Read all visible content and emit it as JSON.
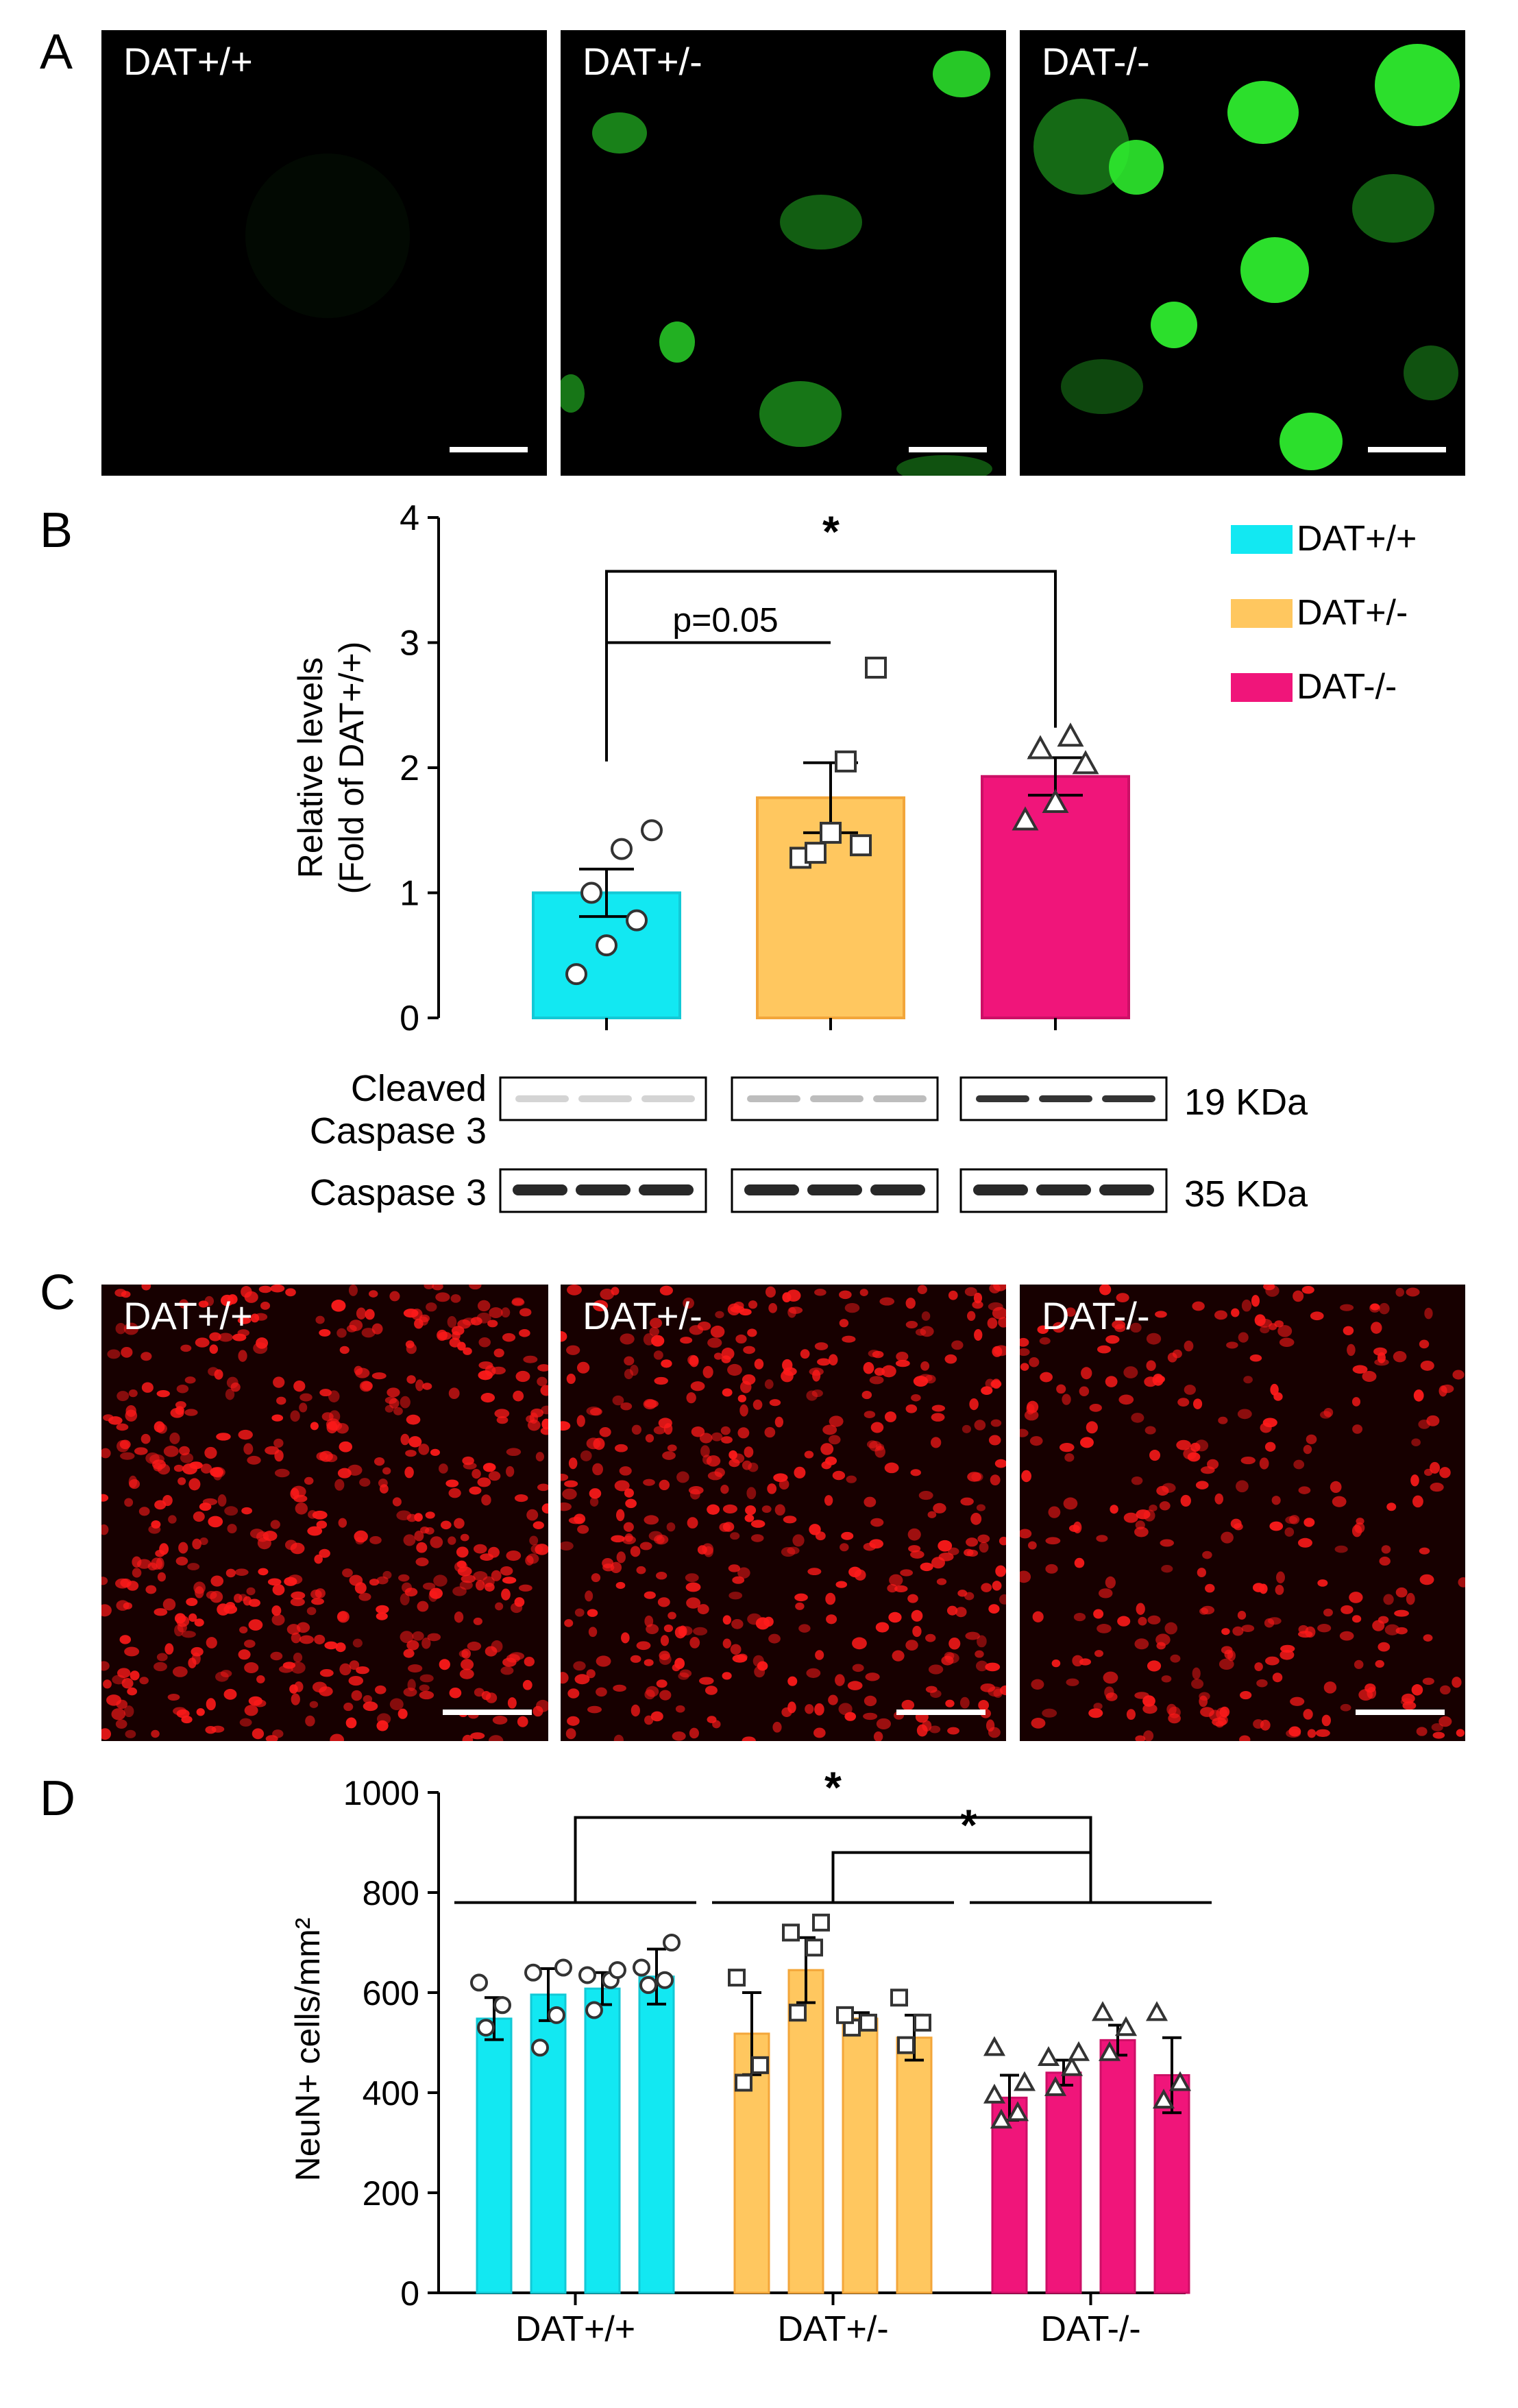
{
  "colors": {
    "wt": "#12e8f2",
    "het": "#ffc75f",
    "ko": "#f0157a",
    "wt_edge": "#12c9d6",
    "het_edge": "#f3a63a",
    "ko_edge": "#cc0f66",
    "green_signal": "#2eeb2e",
    "red_signal": "#ff1a1a"
  },
  "panel_labels": {
    "a": "A",
    "b": "B",
    "c": "C",
    "d": "D"
  },
  "panel_a": {
    "images": [
      {
        "label": "DAT+/+"
      },
      {
        "label": "DAT+/-"
      },
      {
        "label": "DAT-/-"
      }
    ]
  },
  "panel_c": {
    "images": [
      {
        "label": "DAT+/+"
      },
      {
        "label": "DAT+/-"
      },
      {
        "label": "DAT-/-"
      }
    ]
  },
  "legend": [
    {
      "label": "DAT+/+",
      "color_key": "wt"
    },
    {
      "label": "DAT+/-",
      "color_key": "het"
    },
    {
      "label": "DAT-/-",
      "color_key": "ko"
    }
  ],
  "western": {
    "rows": [
      {
        "label_lines": [
          "Cleaved",
          "Caspase 3"
        ],
        "size": "19 KDa"
      },
      {
        "label_lines": [
          "Caspase 3"
        ],
        "size": "35 KDa"
      }
    ]
  },
  "chart_data": [
    {
      "type": "bar",
      "ylabel_lines": [
        "Relative levels",
        "(Fold of DAT+/+)"
      ],
      "ylim": [
        0,
        4
      ],
      "yticks": [
        0,
        1,
        2,
        3,
        4
      ],
      "categories": [
        "DAT+/+",
        "DAT+/-",
        "DAT-/-"
      ],
      "values": [
        1.0,
        1.76,
        1.93
      ],
      "sem": [
        0.19,
        0.28,
        0.15
      ],
      "markers": [
        "circle",
        "square",
        "triangle"
      ],
      "points": [
        [
          0.35,
          0.58,
          0.78,
          1.0,
          1.35,
          1.5
        ],
        [
          1.28,
          1.48,
          1.38,
          1.32,
          2.05,
          2.8
        ],
        [
          1.58,
          1.72,
          2.03,
          2.15,
          2.25
        ]
      ],
      "annotations": [
        {
          "text": "p=0.05",
          "from": 0,
          "to": 1
        },
        {
          "text": "*",
          "from": 0,
          "to": 2
        }
      ]
    },
    {
      "type": "bar",
      "ylabel": "NeuN+ cells/mm²",
      "ylim": [
        0,
        1000
      ],
      "yticks": [
        0,
        200,
        400,
        600,
        800,
        1000
      ],
      "groups": [
        "DAT+/+",
        "DAT+/-",
        "DAT-/-"
      ],
      "markers": [
        "circle",
        "square",
        "triangle"
      ],
      "bars": [
        [
          {
            "value": 548,
            "sem": 42,
            "points": [
              530,
              575,
              620
            ]
          },
          {
            "value": 596,
            "sem": 52,
            "points": [
              490,
              555,
              640,
              650
            ]
          },
          {
            "value": 608,
            "sem": 32,
            "points": [
              565,
              625,
              635,
              645
            ]
          },
          {
            "value": 632,
            "sem": 55,
            "points": [
              615,
              625,
              650,
              700
            ]
          }
        ],
        [
          {
            "value": 518,
            "sem": 82,
            "points": [
              420,
              455,
              630
            ]
          },
          {
            "value": 645,
            "sem": 65,
            "points": [
              560,
              690,
              720,
              740
            ]
          },
          {
            "value": 548,
            "sem": 12,
            "points": [
              530,
              540,
              555
            ]
          },
          {
            "value": 510,
            "sem": 45,
            "points": [
              495,
              540,
              590
            ]
          }
        ],
        [
          {
            "value": 390,
            "sem": 45,
            "points": [
              345,
              360,
              395,
              420,
              490
            ]
          },
          {
            "value": 440,
            "sem": 25,
            "points": [
              410,
              450,
              470,
              480
            ]
          },
          {
            "value": 505,
            "sem": 30,
            "points": [
              480,
              530,
              560
            ]
          },
          {
            "value": 435,
            "sem": 75,
            "points": [
              385,
              420,
              560
            ]
          }
        ]
      ],
      "annotations": [
        {
          "text": "*",
          "from": 0,
          "to": 2
        },
        {
          "text": "*",
          "from": 1,
          "to": 2
        }
      ]
    }
  ]
}
